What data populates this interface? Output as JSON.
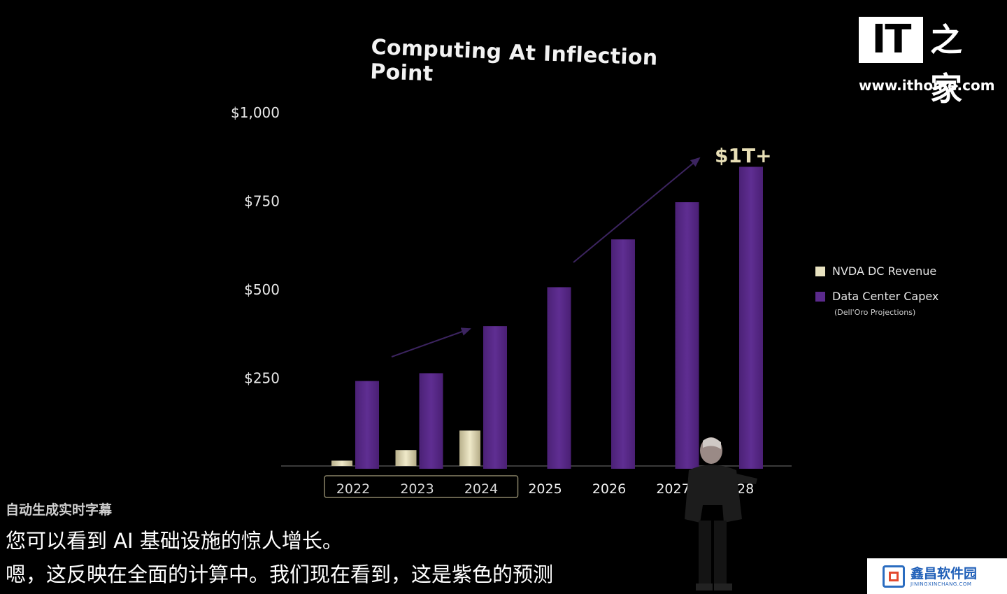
{
  "chart_data": {
    "type": "bar",
    "title": "Computing At Inflection Point",
    "categories": [
      "2022",
      "2023",
      "2024",
      "2025",
      "2026",
      "2027",
      "2028"
    ],
    "ylim": [
      0,
      1000
    ],
    "y_ticks": [
      "$1,000",
      "$750",
      "$500",
      "$250"
    ],
    "y_tick_values": [
      1000,
      750,
      500,
      250
    ],
    "series": [
      {
        "name": "NVDA DC Revenue",
        "color": "#e8e2c0",
        "values": [
          15,
          45,
          100,
          null,
          null,
          null,
          null
        ]
      },
      {
        "name": "Data Center Capex",
        "color": "#5b2a8c",
        "values": [
          240,
          262,
          395,
          505,
          640,
          745,
          845
        ]
      }
    ],
    "legend_note": "(Dell'Oro Projections)",
    "annotation": "$1T+",
    "highlighted_categories": [
      "2022",
      "2023",
      "2024"
    ],
    "legend_position": "right",
    "grid": false
  },
  "branding": {
    "logo_text": "IT",
    "logo_cn": "之家",
    "url": "www.ithome.com"
  },
  "captions": {
    "label": "自动生成实时字幕",
    "line1": "您可以看到 AI 基础设施的惊人增长。",
    "line2": "嗯，这反映在全面的计算中。我们现在看到，这是紫色的预测"
  },
  "watermark": {
    "main": "鑫昌软件园",
    "sub": "JININGXINCHANG.COM"
  }
}
